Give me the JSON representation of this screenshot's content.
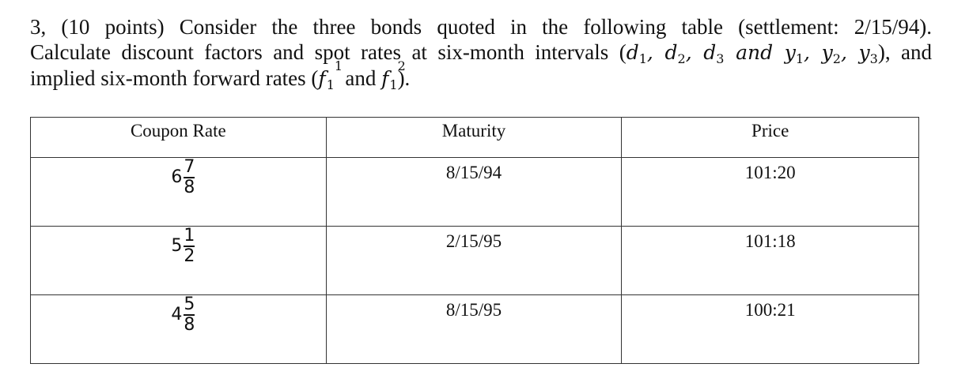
{
  "question": {
    "line1": "3, (10 points) Consider the three bonds quoted in the following table (settlement: 2/15/94).",
    "line2_prefix": "Calculate discount factors and spot rates at six-month intervals (",
    "line2_math": "d",
    "line2_suffix": "), and",
    "line3_prefix": "implied six-month forward rates (",
    "line3_suffix": ").",
    "and_word": "and"
  },
  "table": {
    "headers": [
      "Coupon Rate",
      "Maturity",
      "Price"
    ],
    "rows": [
      {
        "whole": "6",
        "num": "7",
        "den": "8",
        "maturity": "8/15/94",
        "price": "101:20"
      },
      {
        "whole": "5",
        "num": "1",
        "den": "2",
        "maturity": "2/15/95",
        "price": "101:18"
      },
      {
        "whole": "4",
        "num": "5",
        "den": "8",
        "maturity": "8/15/95",
        "price": "100:21"
      }
    ]
  }
}
